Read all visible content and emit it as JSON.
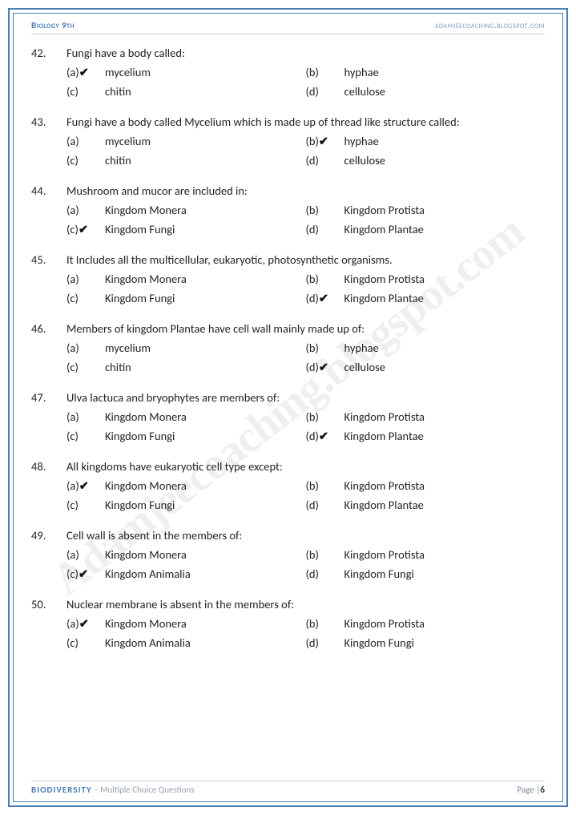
{
  "header": {
    "left": "Biology 9th",
    "right": "adamjeecoaching.blogspot.com"
  },
  "footer": {
    "topic": "BIODIVERSITY",
    "subtitle": " – Multiple Choice Questions",
    "page_label": "Page |",
    "page_number": "6"
  },
  "watermark": "Adamjeecoaching.blogspot.com",
  "tick_glyph": "✔",
  "questions": [
    {
      "num": "42.",
      "text": "Fungi have a body called:",
      "options": [
        {
          "label": "(a)",
          "text": "mycelium",
          "correct": true
        },
        {
          "label": "(b)",
          "text": "hyphae",
          "correct": false
        },
        {
          "label": "(c)",
          "text": "chitin",
          "correct": false
        },
        {
          "label": "(d)",
          "text": "cellulose",
          "correct": false
        }
      ]
    },
    {
      "num": "43.",
      "text": "Fungi have a body called Mycelium which is made up of thread like structure called:",
      "options": [
        {
          "label": "(a)",
          "text": "mycelium",
          "correct": false
        },
        {
          "label": "(b)",
          "text": "hyphae",
          "correct": true
        },
        {
          "label": "(c)",
          "text": "chitin",
          "correct": false
        },
        {
          "label": "(d)",
          "text": "cellulose",
          "correct": false
        }
      ]
    },
    {
      "num": "44.",
      "text": "Mushroom and mucor are included in:",
      "options": [
        {
          "label": "(a)",
          "text": "Kingdom Monera",
          "correct": false
        },
        {
          "label": "(b)",
          "text": "Kingdom Protista",
          "correct": false
        },
        {
          "label": "(c)",
          "text": "Kingdom Fungi",
          "correct": true
        },
        {
          "label": "(d)",
          "text": "Kingdom Plantae",
          "correct": false
        }
      ]
    },
    {
      "num": "45.",
      "text": "It Includes all the multicellular, eukaryotic, photosynthetic organisms.",
      "options": [
        {
          "label": "(a)",
          "text": "Kingdom Monera",
          "correct": false
        },
        {
          "label": "(b)",
          "text": "Kingdom Protista",
          "correct": false
        },
        {
          "label": "(c)",
          "text": "Kingdom Fungi",
          "correct": false
        },
        {
          "label": "(d)",
          "text": "Kingdom Plantae",
          "correct": true
        }
      ]
    },
    {
      "num": "46.",
      "text": "Members of kingdom Plantae have cell wall mainly made up of:",
      "options": [
        {
          "label": "(a)",
          "text": "mycelium",
          "correct": false
        },
        {
          "label": "(b)",
          "text": "hyphae",
          "correct": false
        },
        {
          "label": "(c)",
          "text": "chitin",
          "correct": false
        },
        {
          "label": "(d)",
          "text": "cellulose",
          "correct": true
        }
      ]
    },
    {
      "num": "47.",
      "text": "Ulva lactuca and bryophytes are members of:",
      "options": [
        {
          "label": "(a)",
          "text": "Kingdom Monera",
          "correct": false
        },
        {
          "label": "(b)",
          "text": "Kingdom Protista",
          "correct": false
        },
        {
          "label": "(c)",
          "text": "Kingdom Fungi",
          "correct": false
        },
        {
          "label": "(d)",
          "text": "Kingdom Plantae",
          "correct": true
        }
      ]
    },
    {
      "num": "48.",
      "text": "All kingdoms have eukaryotic cell type except:",
      "options": [
        {
          "label": "(a)",
          "text": "Kingdom Monera",
          "correct": true
        },
        {
          "label": "(b)",
          "text": "Kingdom Protista",
          "correct": false
        },
        {
          "label": "(c)",
          "text": "Kingdom Fungi",
          "correct": false
        },
        {
          "label": "(d)",
          "text": "Kingdom Plantae",
          "correct": false
        }
      ]
    },
    {
      "num": "49.",
      "text": "Cell wall is absent in the members of:",
      "options": [
        {
          "label": "(a)",
          "text": "Kingdom Monera",
          "correct": false
        },
        {
          "label": "(b)",
          "text": "Kingdom Protista",
          "correct": false
        },
        {
          "label": "(c)",
          "text": "Kingdom Animalia",
          "correct": true
        },
        {
          "label": "(d)",
          "text": "Kingdom Fungi",
          "correct": false
        }
      ]
    },
    {
      "num": "50.",
      "text": "Nuclear membrane is absent in the members of:",
      "options": [
        {
          "label": "(a)",
          "text": "Kingdom Monera",
          "correct": true
        },
        {
          "label": "(b)",
          "text": "Kingdom Protista",
          "correct": false
        },
        {
          "label": "(c)",
          "text": "Kingdom Animalia",
          "correct": false
        },
        {
          "label": "(d)",
          "text": "Kingdom Fungi",
          "correct": false
        }
      ]
    }
  ]
}
